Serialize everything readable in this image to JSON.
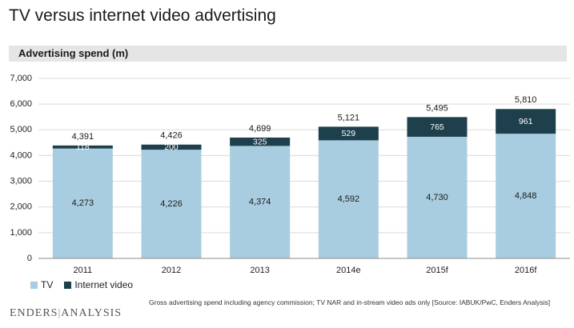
{
  "title": "TV versus internet video advertising",
  "subtitle": "Advertising spend (m)",
  "source_note": "Gross advertising spend including agency commission; TV NAR and in-stream video ads only [Source: IABUK/PwC, Enders Analysis]",
  "logo": {
    "left": "ENDERS",
    "sep": "|",
    "right": "ANALYSIS"
  },
  "colors": {
    "tv": "#a9cde0",
    "internet": "#1e3f4c",
    "grid": "#d9d9d9",
    "axis": "#8c8c8c"
  },
  "chart_data": {
    "type": "bar",
    "stacked": true,
    "title": "TV versus internet video advertising",
    "ylabel": "Advertising spend (m)",
    "categories": [
      "2011",
      "2012",
      "2013",
      "2014e",
      "2015f",
      "2016f"
    ],
    "series": [
      {
        "name": "TV",
        "values": [
          4273,
          4226,
          4374,
          4592,
          4730,
          4848
        ],
        "labels": [
          "4,273",
          "4,226",
          "4,374",
          "4,592",
          "4,730",
          "4,848"
        ]
      },
      {
        "name": "Internet video",
        "values": [
          118,
          200,
          325,
          529,
          765,
          961
        ],
        "labels": [
          "118",
          "200",
          "325",
          "529",
          "765",
          "961"
        ]
      }
    ],
    "totals": [
      4391,
      4426,
      4699,
      5121,
      5495,
      5810
    ],
    "total_labels": [
      "4,391",
      "4,426",
      "4,699",
      "5,121",
      "5,495",
      "5,810"
    ],
    "ylim": [
      0,
      7000
    ],
    "yticks": [
      0,
      1000,
      2000,
      3000,
      4000,
      5000,
      6000,
      7000
    ],
    "ytick_labels": [
      "0",
      "1,000",
      "2,000",
      "3,000",
      "4,000",
      "5,000",
      "6,000",
      "7,000"
    ],
    "grid": true,
    "legend": "bottom-left"
  }
}
